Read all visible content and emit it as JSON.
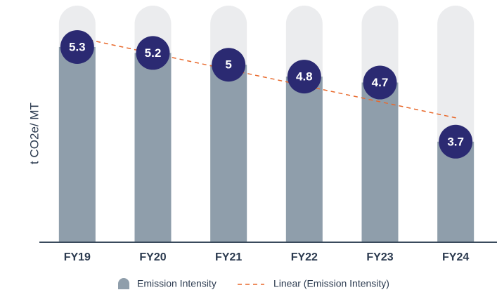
{
  "chart_data": {
    "type": "bar",
    "categories": [
      "FY19",
      "FY20",
      "FY21",
      "FY22",
      "FY23",
      "FY24"
    ],
    "series": [
      {
        "name": "Emission Intensity",
        "color": "#8f9eab",
        "values": [
          5.3,
          5.2,
          5,
          4.8,
          4.7,
          3.7
        ]
      }
    ],
    "ylabel": "t CO2e/ MT",
    "ylim": [
      2,
      6
    ],
    "marker_color": "#2b2a72",
    "trendline": {
      "type": "linear",
      "label": "Linear (Emission Intensity)",
      "color": "#e8692c"
    },
    "legend": "bottom"
  }
}
